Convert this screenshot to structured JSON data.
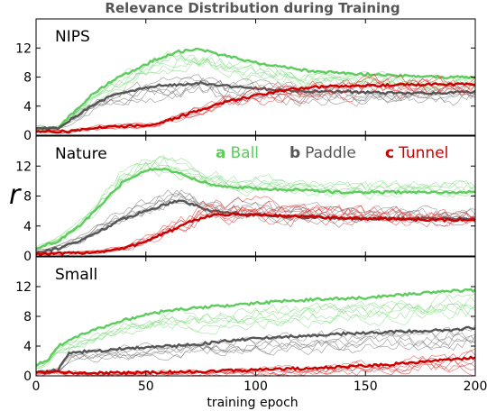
{
  "chart_data": {
    "type": "line",
    "title": "Relevance Distribution during Training",
    "xlabel": "training epoch",
    "ylabel": "r",
    "xlim": [
      0,
      200
    ],
    "xticks": [
      0,
      50,
      100,
      150,
      200
    ],
    "xtick_labels": [
      "0",
      "50",
      "100",
      "150",
      "200"
    ],
    "legend": {
      "placement": "inside Nature panel, top-right",
      "entries": [
        {
          "letter": "a",
          "name": "Ball",
          "color": "#5dcc5d"
        },
        {
          "letter": "b",
          "name": "Paddle",
          "color": "#555555"
        },
        {
          "letter": "c",
          "name": "Tunnel",
          "color": "#cc0000"
        }
      ]
    },
    "colors": {
      "Ball": "#5dcc5d",
      "Paddle": "#555555",
      "Tunnel": "#cc0000",
      "Ball_thin": "#7fdc7f",
      "Paddle_thin": "#777777",
      "Tunnel_thin": "#dd3333"
    },
    "panels": [
      {
        "name": "NIPS",
        "ylim": [
          0,
          16
        ],
        "yticks": [
          0,
          4,
          8,
          12
        ],
        "ytick_labels": [
          "0",
          "4",
          "8",
          "12"
        ],
        "series": [
          {
            "name": "Ball",
            "x": [
              0,
              10,
              15,
              25,
              35,
              45,
              55,
              65,
              75,
              85,
              100,
              120,
              140,
              160,
              180,
              200
            ],
            "values": [
              1,
              1,
              2.5,
              5.5,
              7.5,
              9,
              10.5,
              11.5,
              11.8,
              11,
              10,
              9,
              8.5,
              8.3,
              8,
              8
            ]
          },
          {
            "name": "Paddle",
            "x": [
              0,
              10,
              15,
              25,
              35,
              45,
              55,
              65,
              75,
              85,
              100,
              120,
              140,
              160,
              180,
              200
            ],
            "values": [
              1,
              1,
              2,
              4,
              5.5,
              6.2,
              6.8,
              7,
              7.2,
              6.8,
              6.5,
              6,
              6,
              5.8,
              5.8,
              6
            ]
          },
          {
            "name": "Tunnel",
            "x": [
              0,
              10,
              15,
              25,
              35,
              45,
              55,
              65,
              75,
              85,
              100,
              120,
              140,
              160,
              180,
              200
            ],
            "values": [
              0.5,
              0.5,
              0.5,
              1,
              1.2,
              1.3,
              1.5,
              2.5,
              3.5,
              4.5,
              5.5,
              6.5,
              6.8,
              6.9,
              7,
              7
            ]
          }
        ]
      },
      {
        "name": "Nature",
        "ylim": [
          0,
          16
        ],
        "yticks": [
          0,
          4,
          8,
          12
        ],
        "ytick_labels": [
          "0",
          "4",
          "8",
          "12"
        ],
        "series": [
          {
            "name": "Ball",
            "x": [
              0,
              10,
              20,
              30,
              40,
              50,
              60,
              70,
              80,
              100,
              120,
              140,
              160,
              180,
              200
            ],
            "values": [
              1,
              2,
              4,
              7,
              10,
              11.5,
              11.5,
              10.5,
              9.5,
              9,
              8.8,
              8.5,
              8.5,
              8.5,
              8.5
            ]
          },
          {
            "name": "Paddle",
            "x": [
              0,
              10,
              20,
              30,
              40,
              50,
              60,
              65,
              70,
              80,
              100,
              120,
              140,
              160,
              180,
              200
            ],
            "values": [
              0.5,
              1,
              2,
              3.5,
              5,
              6,
              7,
              7.5,
              7,
              6,
              5.5,
              5.2,
              5,
              5,
              5,
              5
            ]
          },
          {
            "name": "Tunnel",
            "x": [
              0,
              10,
              20,
              30,
              40,
              50,
              60,
              70,
              80,
              100,
              120,
              140,
              160,
              180,
              200
            ],
            "values": [
              0.3,
              0.3,
              0.4,
              0.6,
              1,
              2,
              3.2,
              4.5,
              5.5,
              5.5,
              5.3,
              5,
              5,
              4.8,
              4.8
            ]
          }
        ]
      },
      {
        "name": "Small",
        "ylim": [
          0,
          16
        ],
        "yticks": [
          0,
          4,
          8,
          12
        ],
        "ytick_labels": [
          "0",
          "4",
          "8",
          "12"
        ],
        "series": [
          {
            "name": "Ball",
            "x": [
              0,
              5,
              10,
              20,
              30,
              40,
              50,
              60,
              75,
              90,
              110,
              130,
              150,
              170,
              190,
              200
            ],
            "values": [
              1.5,
              2,
              4,
              5.5,
              6.5,
              7.5,
              8.2,
              8.8,
              9.2,
              9.5,
              10,
              10.3,
              10.5,
              11,
              11.5,
              11.5
            ]
          },
          {
            "name": "Paddle",
            "x": [
              0,
              5,
              10,
              15,
              20,
              30,
              45,
              60,
              75,
              90,
              110,
              130,
              150,
              170,
              190,
              200
            ],
            "values": [
              0.5,
              0.5,
              0.8,
              3,
              3.2,
              3.4,
              3.8,
              4,
              4.3,
              4.8,
              5.2,
              5.5,
              5.8,
              6,
              6.2,
              6.5
            ]
          },
          {
            "name": "Tunnel",
            "x": [
              0,
              10,
              20,
              40,
              60,
              80,
              100,
              120,
              140,
              160,
              180,
              200
            ],
            "values": [
              0.5,
              0.5,
              0.4,
              0.4,
              0.5,
              0.6,
              0.8,
              1,
              1.2,
              1.5,
              2,
              2.5
            ]
          }
        ]
      }
    ]
  }
}
